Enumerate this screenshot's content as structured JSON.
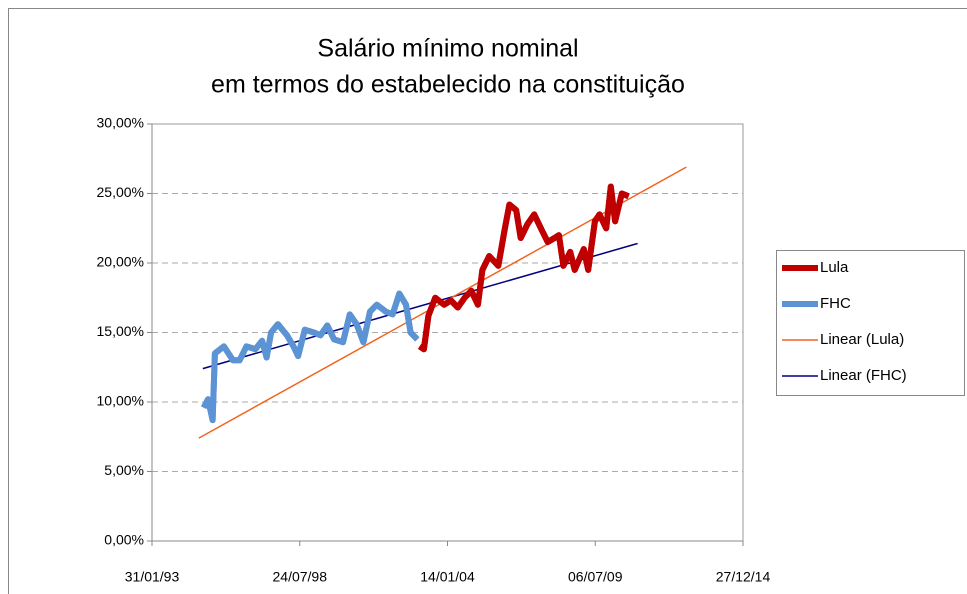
{
  "chart_data": {
    "type": "line",
    "title": [
      "Salário mínimo nominal",
      "em termos do estabelecido na constituição"
    ],
    "xlim": [
      "1993-01-31",
      "2014-12-27"
    ],
    "xticks": [
      {
        "value": "1993-01-31",
        "label": "31/01/93"
      },
      {
        "value": "1998-07-24",
        "label": "24/07/98"
      },
      {
        "value": "2004-01-14",
        "label": "14/01/04"
      },
      {
        "value": "2009-07-06",
        "label": "06/07/09"
      },
      {
        "value": "2014-12-27",
        "label": "27/12/14"
      }
    ],
    "ylim": [
      0,
      30
    ],
    "yticks": [
      {
        "value": 0,
        "label": "0,00%"
      },
      {
        "value": 5,
        "label": "5,00%"
      },
      {
        "value": 10,
        "label": "10,00%"
      },
      {
        "value": 15,
        "label": "15,00%"
      },
      {
        "value": 20,
        "label": "20,00%"
      },
      {
        "value": 25,
        "label": "25,00%"
      },
      {
        "value": 30,
        "label": "30,00%"
      }
    ],
    "grid": true,
    "legend": "right",
    "series": [
      {
        "name": "Lula",
        "color": "#c00000",
        "width": 6,
        "x": [
          "2003-01-01",
          "2003-03-01",
          "2003-05-01",
          "2003-08-01",
          "2003-12-01",
          "2004-03-01",
          "2004-06-01",
          "2004-09-01",
          "2004-12-01",
          "2005-03-01",
          "2005-05-01",
          "2005-08-01",
          "2005-12-01",
          "2006-03-01",
          "2006-05-01",
          "2006-08-01",
          "2006-10-01",
          "2007-01-01",
          "2007-04-01",
          "2007-07-01",
          "2007-10-01",
          "2008-01-01",
          "2008-03-01",
          "2008-05-01",
          "2008-08-01",
          "2008-10-01",
          "2009-02-01",
          "2009-04-01",
          "2009-07-01",
          "2009-09-01",
          "2009-12-01",
          "2010-02-01",
          "2010-04-01",
          "2010-07-01",
          "2010-10-01"
        ],
        "values": [
          14.0,
          13.8,
          16.2,
          17.5,
          17.0,
          17.3,
          16.8,
          17.5,
          18.0,
          17.0,
          19.5,
          20.5,
          19.8,
          22.5,
          24.2,
          23.8,
          21.8,
          22.8,
          23.5,
          22.5,
          21.5,
          21.8,
          22.0,
          19.8,
          20.8,
          19.5,
          21.0,
          19.5,
          23.0,
          23.5,
          22.5,
          25.5,
          23.0,
          25.0,
          24.8
        ]
      },
      {
        "name": "FHC",
        "color": "#5b93d5",
        "width": 6,
        "x": [
          "1995-01-01",
          "1995-03-01",
          "1995-05-01",
          "1995-06-01",
          "1995-10-01",
          "1996-02-01",
          "1996-05-01",
          "1996-08-01",
          "1996-12-01",
          "1997-03-01",
          "1997-05-01",
          "1997-07-01",
          "1997-10-01",
          "1998-02-01",
          "1998-05-01",
          "1998-07-01",
          "1998-10-01",
          "1999-02-01",
          "1999-05-01",
          "1999-08-01",
          "1999-11-01",
          "2000-03-01",
          "2000-06-01",
          "2000-09-01",
          "2000-12-01",
          "2001-03-01",
          "2001-06-01",
          "2001-10-01",
          "2002-01-01",
          "2002-04-01",
          "2002-07-01",
          "2002-09-01",
          "2002-12-01"
        ],
        "values": [
          9.6,
          10.2,
          8.7,
          13.5,
          14.0,
          13.0,
          13.0,
          14.0,
          13.8,
          14.4,
          13.2,
          15.0,
          15.6,
          14.8,
          14.0,
          13.3,
          15.2,
          15.0,
          14.8,
          15.5,
          14.5,
          14.3,
          16.3,
          15.6,
          14.3,
          16.5,
          17.0,
          16.5,
          16.3,
          17.8,
          17.0,
          15.0,
          14.5
        ]
      },
      {
        "name": "Linear (Lula)",
        "color": "#f26522",
        "width": 1.5,
        "x": [
          "1994-10-27",
          "2012-11-20"
        ],
        "values": [
          7.4,
          26.9
        ]
      },
      {
        "name": "Linear (FHC)",
        "color": "#000080",
        "width": 1.5,
        "x": [
          "1994-12-20",
          "2011-01-30"
        ],
        "values": [
          12.4,
          21.4
        ]
      }
    ]
  }
}
